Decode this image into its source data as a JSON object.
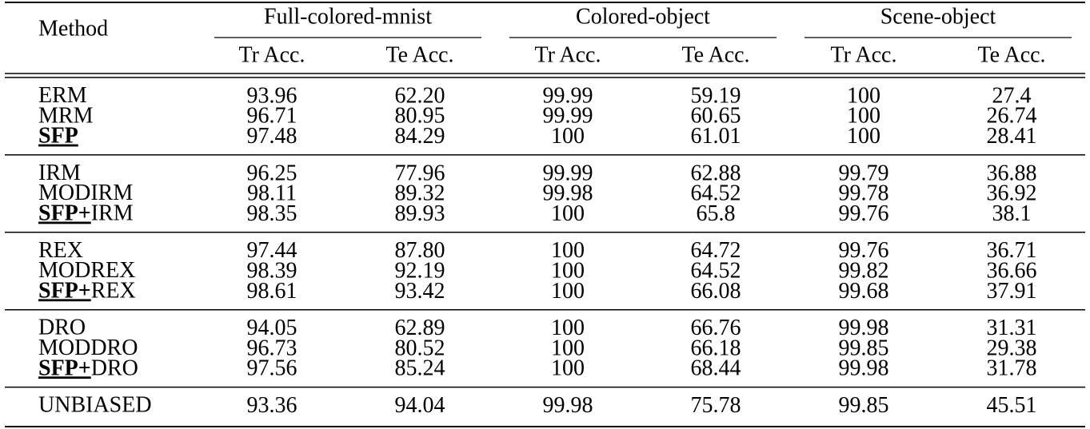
{
  "header": {
    "method": "Method",
    "groups": [
      "Full-colored-mnist",
      "Colored-object",
      "Scene-object"
    ],
    "subheaders": [
      "Tr Acc.",
      "Te Acc.",
      "Tr Acc.",
      "Te Acc.",
      "Tr Acc.",
      "Te Acc."
    ]
  },
  "row_groups": [
    {
      "rows": [
        {
          "method": "ERM",
          "values": [
            "93.96",
            "62.20",
            "99.99",
            "59.19",
            "100",
            "27.4"
          ]
        },
        {
          "method": "MRM",
          "values": [
            "96.71",
            "80.95",
            "99.99",
            "60.65",
            "100",
            "26.74"
          ]
        },
        {
          "method_emph": "SFP",
          "values": [
            "97.48",
            "84.29",
            "100",
            "61.01",
            "100",
            "28.41"
          ]
        }
      ]
    },
    {
      "rows": [
        {
          "method": "IRM",
          "values": [
            "96.25",
            "77.96",
            "99.99",
            "62.88",
            "99.79",
            "36.88"
          ]
        },
        {
          "method": "MODIRM",
          "values": [
            "98.11",
            "89.32",
            "99.98",
            "64.52",
            "99.78",
            "36.92"
          ]
        },
        {
          "method_emph": "SFP+",
          "method": "IRM",
          "values": [
            "98.35",
            "89.93",
            "100",
            "65.8",
            "99.76",
            "38.1"
          ]
        }
      ]
    },
    {
      "rows": [
        {
          "method": "REX",
          "values": [
            "97.44",
            "87.80",
            "100",
            "64.72",
            "99.76",
            "36.71"
          ]
        },
        {
          "method": "MODREX",
          "values": [
            "98.39",
            "92.19",
            "100",
            "64.52",
            "99.82",
            "36.66"
          ]
        },
        {
          "method_emph": "SFP+",
          "method": "REX",
          "values": [
            "98.61",
            "93.42",
            "100",
            "66.08",
            "99.68",
            "37.91"
          ]
        }
      ]
    },
    {
      "rows": [
        {
          "method": "DRO",
          "values": [
            "94.05",
            "62.89",
            "100",
            "66.76",
            "99.98",
            "31.31"
          ]
        },
        {
          "method": "MODDRO",
          "values": [
            "96.73",
            "80.52",
            "100",
            "66.18",
            "99.85",
            "29.38"
          ]
        },
        {
          "method_emph": "SFP+",
          "method": "DRO",
          "values": [
            "97.56",
            "85.24",
            "100",
            "68.44",
            "99.98",
            "31.78"
          ]
        }
      ]
    },
    {
      "rows": [
        {
          "method": "UNBIASED",
          "values": [
            "93.36",
            "94.04",
            "99.98",
            "75.78",
            "99.85",
            "45.51"
          ]
        }
      ]
    }
  ]
}
